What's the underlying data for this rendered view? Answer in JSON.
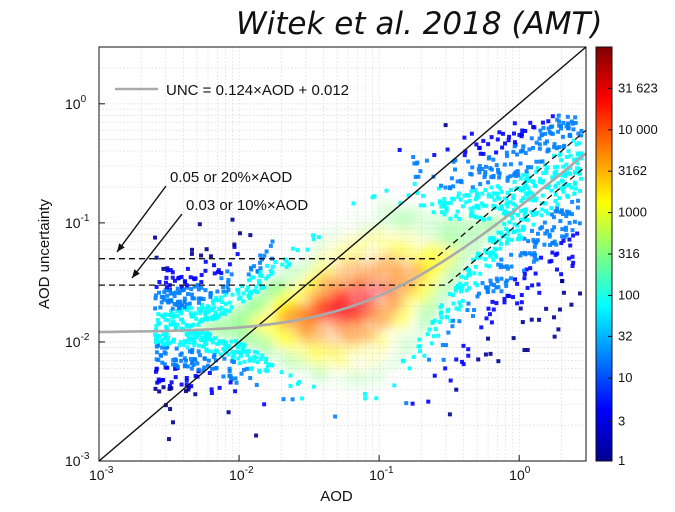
{
  "header": {
    "citation": "Witek et al. 2018 (AMT)"
  },
  "chart_data": {
    "type": "heatmap",
    "x_scale": "log",
    "y_scale": "log",
    "xlabel": "AOD",
    "ylabel": "AOD uncertainty",
    "xlim": [
      0.001,
      3
    ],
    "ylim": [
      0.001,
      3
    ],
    "x_ticks": [
      {
        "value": 0.001,
        "base": "10",
        "exp": "-3"
      },
      {
        "value": 0.01,
        "base": "10",
        "exp": "-2"
      },
      {
        "value": 0.1,
        "base": "10",
        "exp": "-1"
      },
      {
        "value": 1,
        "base": "10",
        "exp": "0"
      }
    ],
    "y_ticks": [
      {
        "value": 0.001,
        "base": "10",
        "exp": "-3"
      },
      {
        "value": 0.01,
        "base": "10",
        "exp": "-2"
      },
      {
        "value": 0.1,
        "base": "10",
        "exp": "-1"
      },
      {
        "value": 1,
        "base": "10",
        "exp": "0"
      }
    ],
    "grid": true,
    "legend": {
      "position": "top-left",
      "entries": [
        {
          "label": "UNC = 0.124×AOD + 0.012",
          "color": "#aaaaaa"
        }
      ]
    },
    "fit_line": {
      "slope": 0.124,
      "intercept": 0.012
    },
    "reference_envelopes": [
      {
        "label": "0.05 or 20%×AOD",
        "floor": 0.05,
        "fraction": 0.2
      },
      {
        "label": "0.03 or 10%×AOD",
        "floor": 0.03,
        "fraction": 0.1
      }
    ],
    "one_to_one_line": true,
    "density_ridge": [
      {
        "aod": 0.003,
        "unc": 0.013
      },
      {
        "aod": 0.01,
        "unc": 0.014
      },
      {
        "aod": 0.03,
        "unc": 0.016
      },
      {
        "aod": 0.1,
        "unc": 0.025
      },
      {
        "aod": 0.3,
        "unc": 0.05
      },
      {
        "aod": 1,
        "unc": 0.13
      },
      {
        "aod": 2.5,
        "unc": 0.3
      }
    ],
    "colorbar": {
      "scale": "log",
      "range": [
        1,
        100000
      ],
      "labels": [
        "31 623",
        "10 000",
        "3162",
        "1000",
        "316",
        "100",
        "32",
        "10",
        "3",
        "1"
      ],
      "label_values": [
        31623,
        10000,
        3162,
        1000,
        316,
        100,
        32,
        10,
        3,
        1
      ],
      "colors": [
        "#00008f",
        "#0000ff",
        "#0080ff",
        "#00ffff",
        "#80ff80",
        "#ffff00",
        "#ff8000",
        "#ff0000",
        "#800000"
      ]
    }
  }
}
